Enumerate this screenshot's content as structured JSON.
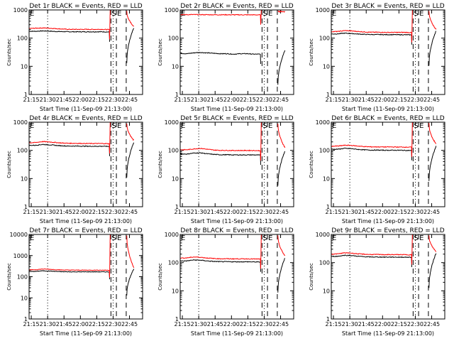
{
  "chart_data": [
    {
      "type": "line",
      "title": "Det 1r BLACK = Events, RED = LLD",
      "xlabel": "Start Time (11-Sep-09 21:13:00)",
      "ylabel": "Counts/sec",
      "yscale": "log",
      "ylim": [
        1,
        1000
      ],
      "ytick_labels": [
        "1",
        "10",
        "100",
        "1000"
      ],
      "xlim_min": [
        13,
        52
      ],
      "xtick_labels": [
        "21:15",
        "21:30",
        "21:45",
        "22:00",
        "22:15",
        "22:30",
        "22:45"
      ],
      "markers": [
        "S",
        "E"
      ],
      "dashed_lines_min": [
        75,
        80,
        89
      ],
      "dotted_lines_min": [
        17,
        77
      ],
      "series": [
        {
          "name": "Events",
          "color": "#000000",
          "y": [
            175,
            175,
            180,
            177,
            172,
            170,
            168,
            168,
            168,
            168,
            168,
            168,
            165
          ]
        },
        {
          "name": "LLD",
          "color": "#ff0000",
          "y": [
            220,
            225,
            230,
            225,
            218,
            210,
            205,
            205,
            205,
            205,
            205,
            205,
            200,
            1000
          ]
        }
      ]
    },
    {
      "type": "line",
      "title": "Det 2r BLACK = Events, RED = LLD",
      "xlabel": "Start Time (11-Sep-09 21:13:00)",
      "ylabel": "Counts/sec",
      "yscale": "log",
      "ylim": [
        1,
        1000
      ],
      "ytick_labels": [
        "1",
        "10",
        "100",
        "1000"
      ],
      "xlim_min": [
        13,
        52
      ],
      "xtick_labels": [
        "21:15",
        "21:30",
        "21:45",
        "22:00",
        "22:15",
        "22:30",
        "22:45"
      ],
      "markers": [
        "S",
        "E"
      ],
      "dashed_lines_min": [
        75,
        80,
        89
      ],
      "dotted_lines_min": [
        17,
        77
      ],
      "series": [
        {
          "name": "Events",
          "color": "#000000",
          "y": [
            29,
            28,
            30,
            31,
            30,
            29,
            28,
            28,
            27,
            28,
            28,
            27,
            27
          ]
        },
        {
          "name": "LLD",
          "color": "#ff0000",
          "y": [
            680,
            680,
            685,
            680,
            678,
            676,
            675,
            675,
            672,
            672,
            670,
            670,
            668,
            1000
          ]
        }
      ]
    },
    {
      "type": "line",
      "title": "Det 3r BLACK = Events, RED = LLD",
      "xlabel": "Start Time (11-Sep-09 21:13:00)",
      "ylabel": "Counts/sec",
      "yscale": "log",
      "ylim": [
        1,
        1000
      ],
      "ytick_labels": [
        "1",
        "10",
        "100",
        "1000"
      ],
      "xlim_min": [
        13,
        52
      ],
      "xtick_labels": [
        "21:15",
        "21:30",
        "21:45",
        "22:00",
        "22:15",
        "22:30",
        "22:45"
      ],
      "markers": [
        "S",
        "E"
      ],
      "dashed_lines_min": [
        75,
        80,
        89
      ],
      "dotted_lines_min": [
        17,
        77
      ],
      "series": [
        {
          "name": "Events",
          "color": "#000000",
          "y": [
            140,
            142,
            150,
            145,
            140,
            136,
            134,
            134,
            133,
            133,
            132,
            132,
            130
          ]
        },
        {
          "name": "LLD",
          "color": "#ff0000",
          "y": [
            170,
            172,
            185,
            180,
            172,
            166,
            162,
            162,
            160,
            160,
            160,
            160,
            158,
            1000
          ]
        }
      ]
    },
    {
      "type": "line",
      "title": "Det 4r BLACK = Events, RED = LLD",
      "xlabel": "Start Time (11-Sep-09 21:13:00)",
      "ylabel": "Counts/sec",
      "yscale": "log",
      "ylim": [
        1,
        1000
      ],
      "ytick_labels": [
        "1",
        "10",
        "100",
        "1000"
      ],
      "xlim_min": [
        13,
        52
      ],
      "xtick_labels": [
        "21:15",
        "21:30",
        "21:45",
        "22:00",
        "22:15",
        "22:30",
        "22:45"
      ],
      "markers": [
        "S",
        "E"
      ],
      "dashed_lines_min": [
        75,
        80,
        89
      ],
      "dotted_lines_min": [
        17,
        77
      ],
      "series": [
        {
          "name": "Events",
          "color": "#000000",
          "y": [
            150,
            152,
            162,
            158,
            150,
            145,
            142,
            142,
            141,
            140,
            140,
            140,
            138
          ]
        },
        {
          "name": "LLD",
          "color": "#ff0000",
          "y": [
            185,
            190,
            205,
            200,
            190,
            182,
            178,
            178,
            176,
            175,
            175,
            175,
            172,
            1000
          ]
        }
      ]
    },
    {
      "type": "line",
      "title": "Det 5r BLACK = Events, RED = LLD",
      "xlabel": "Start Time (11-Sep-09 21:13:00)",
      "ylabel": "Counts/sec",
      "yscale": "log",
      "ylim": [
        1,
        1000
      ],
      "ytick_labels": [
        "1",
        "10",
        "100",
        "1000"
      ],
      "xlim_min": [
        13,
        52
      ],
      "xtick_labels": [
        "21:15",
        "21:30",
        "21:45",
        "22:00",
        "22:15",
        "22:30",
        "22:45"
      ],
      "markers": [
        "S",
        "E"
      ],
      "dashed_lines_min": [
        75,
        80,
        89
      ],
      "dotted_lines_min": [
        17,
        77
      ],
      "series": [
        {
          "name": "Events",
          "color": "#000000",
          "y": [
            75,
            74,
            80,
            82,
            76,
            72,
            70,
            70,
            69,
            69,
            69,
            69,
            68
          ]
        },
        {
          "name": "LLD",
          "color": "#ff0000",
          "y": [
            105,
            105,
            112,
            118,
            110,
            103,
            100,
            100,
            99,
            99,
            99,
            99,
            97,
            1000
          ]
        }
      ]
    },
    {
      "type": "line",
      "title": "Det 6r BLACK = Events, RED = LLD",
      "xlabel": "Start Time (11-Sep-09 21:13:00)",
      "ylabel": "Counts/sec",
      "yscale": "log",
      "ylim": [
        1,
        1000
      ],
      "ytick_labels": [
        "1",
        "10",
        "100",
        "1000"
      ],
      "xlim_min": [
        13,
        52
      ],
      "xtick_labels": [
        "21:15",
        "21:30",
        "21:45",
        "22:00",
        "22:15",
        "22:30",
        "22:45"
      ],
      "markers": [
        "S",
        "E"
      ],
      "dashed_lines_min": [
        75,
        80,
        89
      ],
      "dotted_lines_min": [
        17,
        77
      ],
      "series": [
        {
          "name": "Events",
          "color": "#000000",
          "y": [
            110,
            110,
            118,
            115,
            108,
            104,
            102,
            102,
            101,
            101,
            101,
            100,
            99
          ]
        },
        {
          "name": "LLD",
          "color": "#ff0000",
          "y": [
            140,
            142,
            152,
            150,
            142,
            136,
            133,
            133,
            132,
            132,
            131,
            131,
            130,
            1000
          ]
        }
      ]
    },
    {
      "type": "line",
      "title": "Det 7r BLACK = Events, RED = LLD",
      "xlabel": "Start Time (11-Sep-09 21:13:00)",
      "ylabel": "Counts/sec",
      "yscale": "log",
      "ylim": [
        1,
        10000
      ],
      "ytick_labels": [
        "1",
        "10",
        "100",
        "1000",
        "10000"
      ],
      "xlim_min": [
        13,
        52
      ],
      "xtick_labels": [
        "21:15",
        "21:30",
        "21:45",
        "22:00",
        "22:15",
        "22:30",
        "22:45"
      ],
      "markers": [
        "S",
        "E"
      ],
      "dashed_lines_min": [
        75,
        80,
        89
      ],
      "dotted_lines_min": [
        17,
        77
      ],
      "series": [
        {
          "name": "Events",
          "color": "#000000",
          "y": [
            175,
            178,
            190,
            185,
            178,
            172,
            170,
            170,
            170,
            170,
            170,
            170,
            168
          ]
        },
        {
          "name": "LLD",
          "color": "#ff0000",
          "y": [
            210,
            215,
            230,
            225,
            215,
            208,
            205,
            205,
            204,
            204,
            204,
            204,
            202,
            10000
          ]
        }
      ]
    },
    {
      "type": "line",
      "title": "Det 8r BLACK = Events, RED = LLD",
      "xlabel": "Start Time (11-Sep-09 21:13:00)",
      "ylabel": "Counts/sec",
      "yscale": "log",
      "ylim": [
        1,
        1000
      ],
      "ytick_labels": [
        "1",
        "10",
        "100",
        "1000"
      ],
      "xlim_min": [
        13,
        52
      ],
      "xtick_labels": [
        "21:15",
        "21:30",
        "21:45",
        "22:00",
        "22:15",
        "22:30",
        "22:45"
      ],
      "markers": [
        "S",
        "E"
      ],
      "dashed_lines_min": [
        75,
        80,
        89
      ],
      "dotted_lines_min": [
        17,
        77
      ],
      "series": [
        {
          "name": "Events",
          "color": "#000000",
          "y": [
            115,
            115,
            124,
            122,
            115,
            110,
            108,
            108,
            107,
            107,
            107,
            106,
            105
          ]
        },
        {
          "name": "LLD",
          "color": "#ff0000",
          "y": [
            145,
            147,
            158,
            155,
            146,
            140,
            137,
            137,
            136,
            136,
            136,
            135,
            134,
            1000
          ]
        }
      ]
    },
    {
      "type": "line",
      "title": "Det 9r BLACK = Events, RED = LLD",
      "xlabel": "Start Time (11-Sep-09 21:13:00)",
      "ylabel": "Counts/sec",
      "yscale": "log",
      "ylim": [
        1,
        1000
      ],
      "ytick_labels": [
        "1",
        "10",
        "100",
        "1000"
      ],
      "xlim_min": [
        13,
        52
      ],
      "xtick_labels": [
        "21:15",
        "21:30",
        "21:45",
        "22:00",
        "22:15",
        "22:30",
        "22:45"
      ],
      "markers": [
        "S",
        "E"
      ],
      "dashed_lines_min": [
        75,
        80,
        89
      ],
      "dotted_lines_min": [
        17,
        77
      ],
      "series": [
        {
          "name": "Events",
          "color": "#000000",
          "y": [
            165,
            168,
            182,
            178,
            168,
            162,
            158,
            158,
            157,
            157,
            156,
            156,
            154
          ]
        },
        {
          "name": "LLD",
          "color": "#ff0000",
          "y": [
            200,
            205,
            222,
            218,
            205,
            198,
            194,
            194,
            192,
            192,
            192,
            191,
            190,
            1000
          ]
        }
      ]
    }
  ]
}
